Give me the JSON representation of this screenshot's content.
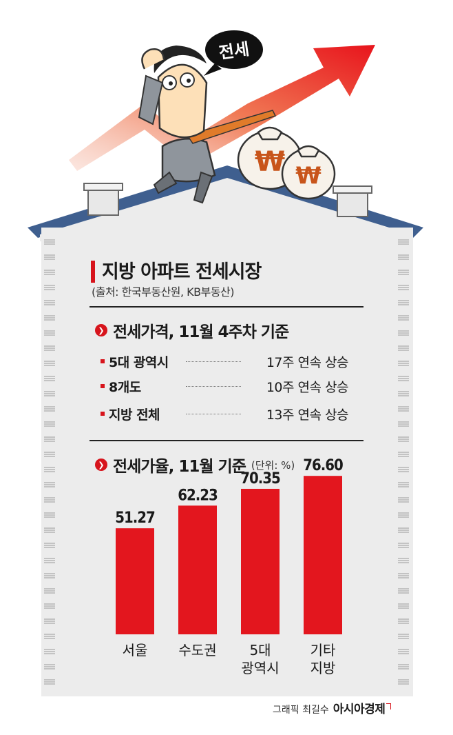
{
  "illustration": {
    "bubble_text": "전세"
  },
  "title": "지방 아파트 전세시장",
  "source": "(출처: 한국부동산원, KB부동산)",
  "section1": {
    "label": "전세가격, 11월 4주차 기준",
    "rows": [
      {
        "name": "5대 광역시",
        "value": "17주 연속 상승"
      },
      {
        "name": "8개도",
        "value": "10주 연속 상승"
      },
      {
        "name": "지방 전체",
        "value": "13주 연속 상승"
      }
    ]
  },
  "section2": {
    "label": "전세가율, 11월 기준",
    "unit": "(단위: %)"
  },
  "chart_data": {
    "type": "bar",
    "categories": [
      "서울",
      "수도권",
      "5대\n광역시",
      "기타\n지방"
    ],
    "values": [
      51.27,
      62.23,
      70.35,
      76.6
    ],
    "value_labels": [
      "51.27",
      "62.23",
      "70.35",
      "76.60"
    ],
    "bar_color": "#e3161e",
    "ylim": [
      0,
      80
    ]
  },
  "credit": {
    "by": "그래픽 최길수",
    "publisher": "아시아경제"
  },
  "colors": {
    "accent": "#d7141c",
    "house": "#ececec",
    "roof": "#3f5f8f"
  }
}
